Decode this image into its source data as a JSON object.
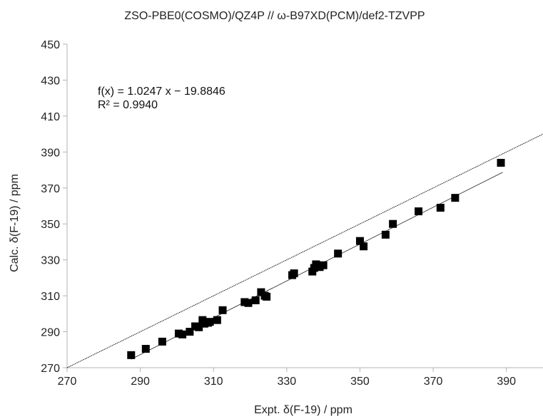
{
  "chart_data": {
    "type": "scatter",
    "title": "ZSO-PBE0(COSMO)/QZ4P // ω-B97XD(PCM)/def2-TZVPP",
    "xlabel": "Expt. δ(F-19) / ppm",
    "ylabel": "Calc. δ(F-19) / ppm",
    "xlim": [
      270,
      400
    ],
    "ylim": [
      270,
      450
    ],
    "xticks": [
      270,
      290,
      310,
      330,
      350,
      370,
      390
    ],
    "yticks": [
      270,
      290,
      310,
      330,
      350,
      370,
      390,
      410,
      430,
      450
    ],
    "grid": false,
    "annotations": [
      "f(x) = 1.0247 x − 19.8846",
      "R² = 0.9940"
    ],
    "fit": {
      "slope": 1.0247,
      "intercept": -19.8846,
      "x_range": [
        287.5,
        389
      ]
    },
    "reference_line": {
      "slope": 1,
      "intercept": 0
    },
    "marker": "square",
    "marker_color": "#000000",
    "points": [
      [
        287.5,
        277.0
      ],
      [
        291.5,
        280.5
      ],
      [
        296.0,
        284.5
      ],
      [
        300.5,
        289.0
      ],
      [
        301.5,
        288.5
      ],
      [
        303.5,
        290.0
      ],
      [
        305.0,
        293.0
      ],
      [
        306.0,
        292.5
      ],
      [
        307.0,
        296.5
      ],
      [
        307.5,
        294.5
      ],
      [
        308.5,
        295.0
      ],
      [
        309.0,
        295.5
      ],
      [
        311.0,
        296.5
      ],
      [
        312.5,
        302.0
      ],
      [
        318.5,
        306.5
      ],
      [
        319.5,
        306.0
      ],
      [
        321.5,
        307.5
      ],
      [
        323.0,
        312.0
      ],
      [
        324.0,
        310.0
      ],
      [
        324.5,
        309.5
      ],
      [
        331.5,
        321.5
      ],
      [
        332.0,
        322.5
      ],
      [
        337.0,
        323.5
      ],
      [
        337.5,
        325.5
      ],
      [
        338.0,
        327.5
      ],
      [
        339.0,
        326.0
      ],
      [
        340.0,
        327.0
      ],
      [
        344.0,
        333.5
      ],
      [
        350.0,
        340.5
      ],
      [
        351.0,
        337.5
      ],
      [
        357.0,
        344.0
      ],
      [
        359.0,
        350.0
      ],
      [
        366.0,
        357.0
      ],
      [
        372.0,
        359.0
      ],
      [
        376.0,
        364.5
      ],
      [
        388.5,
        384.0
      ]
    ]
  }
}
